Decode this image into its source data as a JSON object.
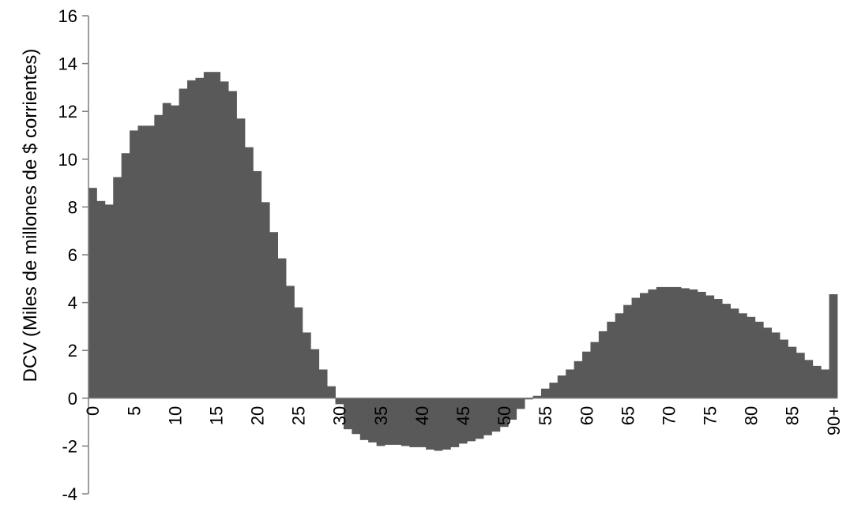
{
  "chart_data": {
    "type": "bar",
    "ylabel": "DCV (Miles de millones de $ corrientes)",
    "ylim": [
      -4,
      16
    ],
    "yticks": [
      16,
      14,
      12,
      10,
      8,
      6,
      4,
      2,
      0,
      -2,
      -4
    ],
    "xtick_labels": [
      "0",
      "5",
      "10",
      "15",
      "20",
      "25",
      "30",
      "35",
      "40",
      "45",
      "50",
      "55",
      "60",
      "65",
      "70",
      "75",
      "80",
      "85",
      "90+"
    ],
    "bar_color": "#595959",
    "grid": false,
    "categories": [
      "0",
      "1",
      "2",
      "3",
      "4",
      "5",
      "6",
      "7",
      "8",
      "9",
      "10",
      "11",
      "12",
      "13",
      "14",
      "15",
      "16",
      "17",
      "18",
      "19",
      "20",
      "21",
      "22",
      "23",
      "24",
      "25",
      "26",
      "27",
      "28",
      "29",
      "30",
      "31",
      "32",
      "33",
      "34",
      "35",
      "36",
      "37",
      "38",
      "39",
      "40",
      "41",
      "42",
      "43",
      "44",
      "45",
      "46",
      "47",
      "48",
      "49",
      "50",
      "51",
      "52",
      "53",
      "54",
      "55",
      "56",
      "57",
      "58",
      "59",
      "60",
      "61",
      "62",
      "63",
      "64",
      "65",
      "66",
      "67",
      "68",
      "69",
      "70",
      "71",
      "72",
      "73",
      "74",
      "75",
      "76",
      "77",
      "78",
      "79",
      "80",
      "81",
      "82",
      "83",
      "84",
      "85",
      "86",
      "87",
      "88",
      "89",
      "90+"
    ],
    "values": [
      8.8,
      8.25,
      8.1,
      9.25,
      10.25,
      11.2,
      11.4,
      11.4,
      11.85,
      12.35,
      12.25,
      12.95,
      13.3,
      13.4,
      13.65,
      13.65,
      13.25,
      12.85,
      11.7,
      10.5,
      9.5,
      8.2,
      6.95,
      5.85,
      4.7,
      3.8,
      2.75,
      2.05,
      1.2,
      0.5,
      -0.25,
      -1.3,
      -1.5,
      -1.75,
      -1.85,
      -2.0,
      -1.95,
      -1.95,
      -2.0,
      -2.05,
      -2.05,
      -2.15,
      -2.2,
      -2.15,
      -2.05,
      -1.9,
      -1.8,
      -1.7,
      -1.55,
      -1.4,
      -1.2,
      -0.9,
      -0.45,
      -0.05,
      0.1,
      0.4,
      0.65,
      0.95,
      1.2,
      1.55,
      1.95,
      2.35,
      2.8,
      3.2,
      3.55,
      3.9,
      4.2,
      4.4,
      4.55,
      4.65,
      4.65,
      4.65,
      4.6,
      4.55,
      4.45,
      4.3,
      4.15,
      3.95,
      3.75,
      3.55,
      3.4,
      3.2,
      2.95,
      2.75,
      2.45,
      2.15,
      1.9,
      1.6,
      1.35,
      1.2,
      4.35
    ]
  }
}
